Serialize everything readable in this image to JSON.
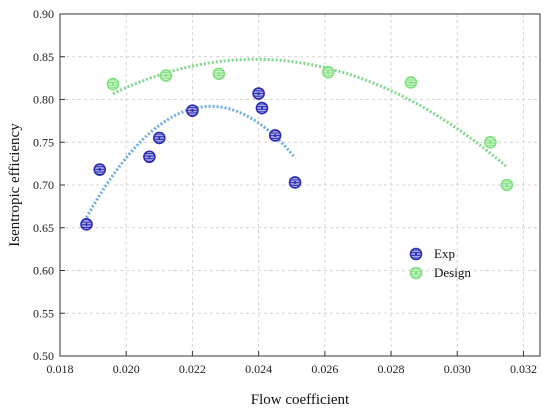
{
  "chart_data": {
    "type": "scatter",
    "title": "",
    "xlabel": "Flow coefficient",
    "ylabel": "Isentropic efficiency",
    "xlim": [
      0.018,
      0.0325
    ],
    "ylim": [
      0.5,
      0.9
    ],
    "x_ticks": [
      "0.018",
      "0.020",
      "0.022",
      "0.024",
      "0.026",
      "0.028",
      "0.030",
      "0.032"
    ],
    "y_ticks": [
      "0.50",
      "0.55",
      "0.60",
      "0.65",
      "0.70",
      "0.75",
      "0.80",
      "0.85",
      "0.90"
    ],
    "grid": true,
    "legend_position": "center-right",
    "series": [
      {
        "name": "Exp",
        "marker": "hatched-circle",
        "color": "#2b2bb8",
        "fit_color": "#6aaee8",
        "points": [
          {
            "x": 0.0188,
            "y": 0.654
          },
          {
            "x": 0.0192,
            "y": 0.718
          },
          {
            "x": 0.0207,
            "y": 0.733
          },
          {
            "x": 0.021,
            "y": 0.755
          },
          {
            "x": 0.022,
            "y": 0.787
          },
          {
            "x": 0.024,
            "y": 0.807
          },
          {
            "x": 0.0241,
            "y": 0.79
          },
          {
            "x": 0.0245,
            "y": 0.758
          },
          {
            "x": 0.0251,
            "y": 0.703
          }
        ],
        "fit": {
          "x_range": [
            0.0188,
            0.0251
          ],
          "vertex_x": 0.02255,
          "vertex_y": 0.792,
          "a": -9250
        }
      },
      {
        "name": "Design",
        "marker": "hatched-circle",
        "color": "#7fe07f",
        "fit_color": "#7fd88a",
        "points": [
          {
            "x": 0.0196,
            "y": 0.818
          },
          {
            "x": 0.0212,
            "y": 0.828
          },
          {
            "x": 0.0228,
            "y": 0.83
          },
          {
            "x": 0.0261,
            "y": 0.832
          },
          {
            "x": 0.0286,
            "y": 0.82
          },
          {
            "x": 0.031,
            "y": 0.75
          },
          {
            "x": 0.0315,
            "y": 0.7
          }
        ],
        "fit": {
          "x_range": [
            0.0196,
            0.0315
          ],
          "vertex_x": 0.0239,
          "vertex_y": 0.847,
          "a": -2180
        }
      }
    ]
  },
  "colors": {
    "grid": "#d4d4d4",
    "axis": "#333333"
  }
}
